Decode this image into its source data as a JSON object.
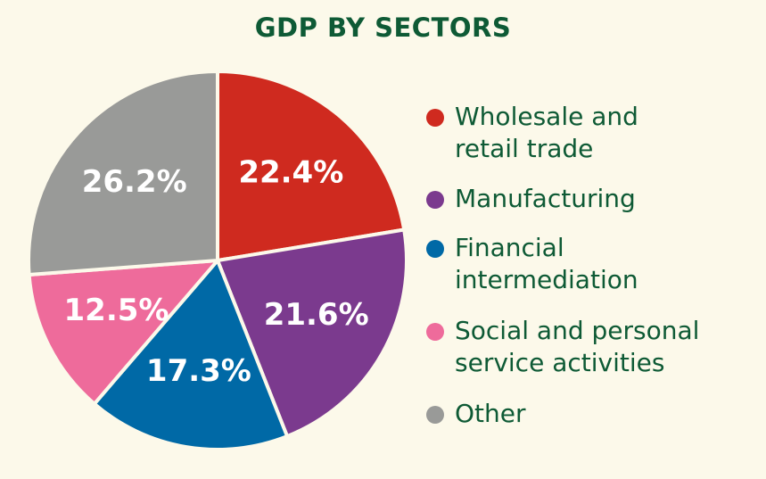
{
  "chart_data": {
    "type": "pie",
    "title": "GDP BY SECTORS",
    "categories": [
      "Wholesale and retail trade",
      "Manufacturing",
      "Financial intermediation",
      "Social and personal service activities",
      "Other"
    ],
    "values": [
      22.4,
      21.6,
      17.3,
      12.5,
      26.2
    ],
    "value_labels": [
      "22.4%",
      "21.6%",
      "17.3%",
      "12.5%",
      "26.2%"
    ],
    "colors": [
      "#cf2a1f",
      "#7b3a8e",
      "#0069a6",
      "#ee6b9b",
      "#999a98"
    ],
    "legend_position": "right",
    "legend": [
      {
        "line1": "Wholesale and",
        "line2": "retail trade"
      },
      {
        "line1": "Manufacturing",
        "line2": ""
      },
      {
        "line1": "Financial",
        "line2": "intermediation"
      },
      {
        "line1": "Social and personal",
        "line2": "service activities"
      },
      {
        "line1": "Other",
        "line2": ""
      }
    ]
  }
}
